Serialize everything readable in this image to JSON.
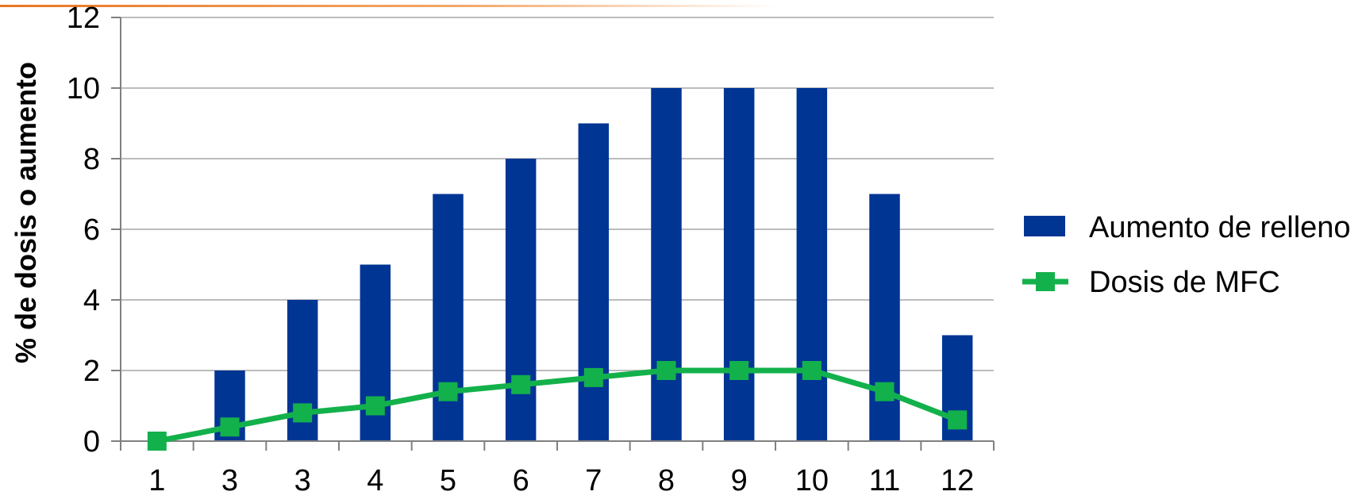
{
  "colors": {
    "bar": "#003594",
    "line": "#13b14b",
    "grid": "#a6a6a6",
    "accent": "#e87722"
  },
  "chart_data": {
    "type": "bar",
    "categories": [
      "1",
      "3",
      "3",
      "4",
      "5",
      "6",
      "7",
      "8",
      "9",
      "10",
      "11",
      "12"
    ],
    "series": [
      {
        "name": "Aumento de relleno",
        "type": "bar",
        "values": [
          0,
          2,
          4,
          5,
          7,
          8,
          9,
          10,
          10,
          10,
          7,
          3
        ]
      },
      {
        "name": "Dosis de MFC",
        "type": "line",
        "marker": "square",
        "values": [
          0,
          0.4,
          0.8,
          1.0,
          1.4,
          1.6,
          1.8,
          2.0,
          2.0,
          2.0,
          1.4,
          0.6
        ]
      }
    ],
    "title": "",
    "xlabel": "",
    "ylabel": "% de dosis o aumento",
    "ylim": [
      0,
      12
    ],
    "yticks": [
      0,
      2,
      4,
      6,
      8,
      10,
      12
    ],
    "grid": true,
    "legend": "right"
  }
}
